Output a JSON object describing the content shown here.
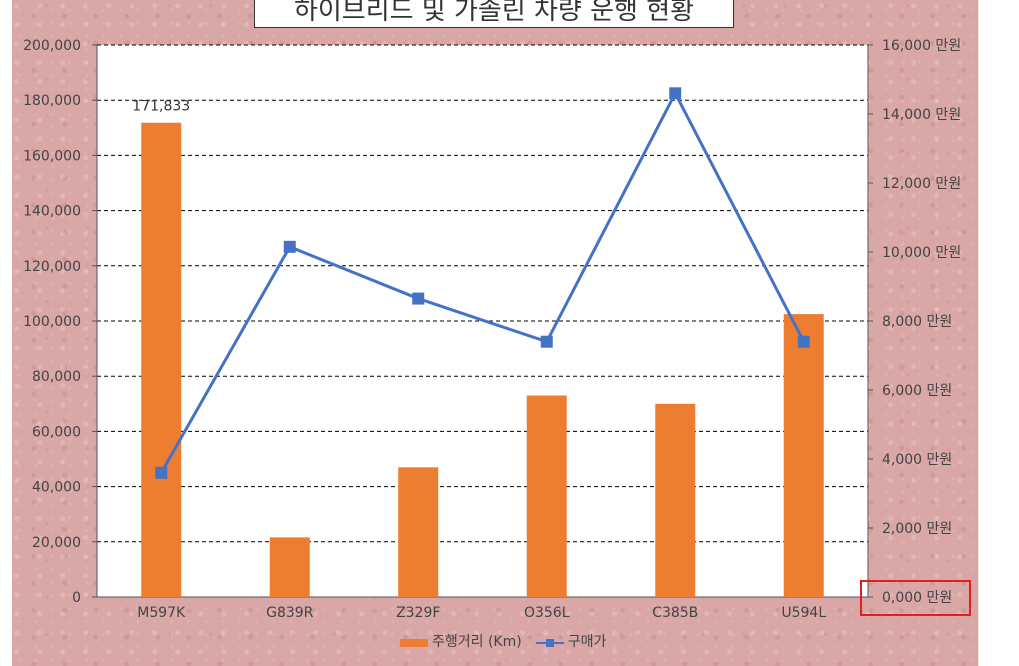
{
  "chart_data": {
    "type": "bar",
    "title": "하이브리드 및 가솔린 차량 운행 현황",
    "categories": [
      "M597K",
      "G839R",
      "Z329F",
      "O356L",
      "C385B",
      "U594L"
    ],
    "series": [
      {
        "name": "주행거리 (Km)",
        "type": "bar",
        "axis": "left",
        "color": "#ed7d31",
        "values": [
          171833,
          21600,
          47000,
          73000,
          70000,
          102500
        ]
      },
      {
        "name": "구매가",
        "type": "line",
        "axis": "right",
        "color": "#4472c4",
        "marker": "square",
        "values": [
          3600,
          10150,
          8650,
          7400,
          14600,
          7400
        ]
      }
    ],
    "data_labels": [
      {
        "series": 0,
        "index": 0,
        "text": "171,833"
      }
    ],
    "y_left": {
      "range": [
        0,
        200000
      ],
      "ticks": [
        0,
        20000,
        40000,
        60000,
        80000,
        100000,
        120000,
        140000,
        160000,
        180000,
        200000
      ],
      "tick_labels": [
        "0",
        "20,000",
        "40,000",
        "60,000",
        "80,000",
        "100,000",
        "120,000",
        "140,000",
        "160,000",
        "180,000",
        "200,000"
      ]
    },
    "y_right": {
      "range": [
        0,
        16000
      ],
      "ticks": [
        0,
        2000,
        4000,
        6000,
        8000,
        10000,
        12000,
        14000,
        16000
      ],
      "tick_labels": [
        "0,000 만원",
        "2,000 만원",
        "4,000 만원",
        "6,000 만원",
        "8,000 만원",
        "10,000 만원",
        "12,000 만원",
        "14,000 만원",
        "16,000 만원"
      ]
    },
    "grid": true,
    "grid_style": "dashed",
    "legend_position": "bottom",
    "background_color": "#d9a7a6",
    "plot_background": "#ffffff",
    "highlight_color": "#e02020"
  },
  "legend": {
    "bar_label": "주행거리 (Km)",
    "line_label": "구매가"
  }
}
